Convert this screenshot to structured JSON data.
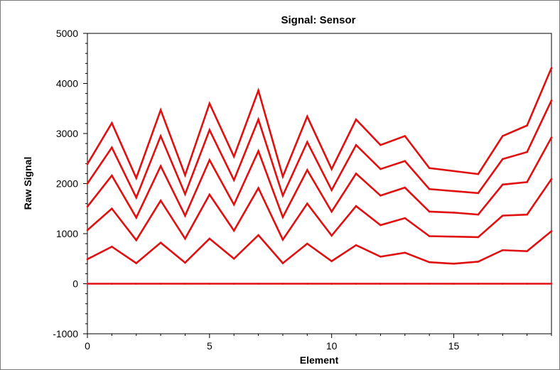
{
  "chart_data": {
    "type": "line",
    "title": "Signal: Sensor",
    "xlabel": "Element",
    "ylabel": "Raw Signal",
    "xlim": [
      0,
      19
    ],
    "ylim": [
      -1000,
      5000
    ],
    "x_ticks": [
      0,
      5,
      10,
      15
    ],
    "y_ticks": [
      -1000,
      0,
      1000,
      2000,
      3000,
      4000,
      5000
    ],
    "grid": false,
    "line_color": "#e01010",
    "x": [
      0,
      1,
      2,
      3,
      4,
      5,
      6,
      7,
      8,
      9,
      10,
      11,
      12,
      13,
      14,
      15,
      16,
      17,
      18,
      19
    ],
    "series": [
      {
        "values": [
          2390,
          3210,
          2110,
          3470,
          2170,
          3600,
          2540,
          3860,
          2140,
          3340,
          2290,
          3280,
          2770,
          2950,
          2310,
          2250,
          2190,
          2950,
          3160,
          4310
        ]
      },
      {
        "values": [
          2000,
          2720,
          1720,
          2950,
          1790,
          3070,
          2070,
          3280,
          1760,
          2830,
          1870,
          2770,
          2290,
          2450,
          1890,
          1850,
          1810,
          2490,
          2630,
          3660
        ]
      },
      {
        "values": [
          1540,
          2160,
          1320,
          2350,
          1360,
          2470,
          1580,
          2650,
          1330,
          2270,
          1440,
          2200,
          1760,
          1920,
          1440,
          1420,
          1380,
          1980,
          2030,
          2920
        ]
      },
      {
        "values": [
          1070,
          1500,
          870,
          1660,
          900,
          1780,
          1060,
          1910,
          880,
          1600,
          960,
          1550,
          1170,
          1310,
          950,
          940,
          930,
          1360,
          1380,
          2090
        ]
      },
      {
        "values": [
          490,
          740,
          410,
          820,
          420,
          900,
          500,
          970,
          410,
          800,
          450,
          770,
          540,
          620,
          430,
          400,
          440,
          670,
          650,
          1050
        ]
      },
      {
        "values": [
          0,
          0,
          0,
          0,
          0,
          0,
          0,
          0,
          0,
          0,
          0,
          0,
          0,
          0,
          0,
          0,
          0,
          0,
          0,
          0
        ]
      }
    ]
  }
}
